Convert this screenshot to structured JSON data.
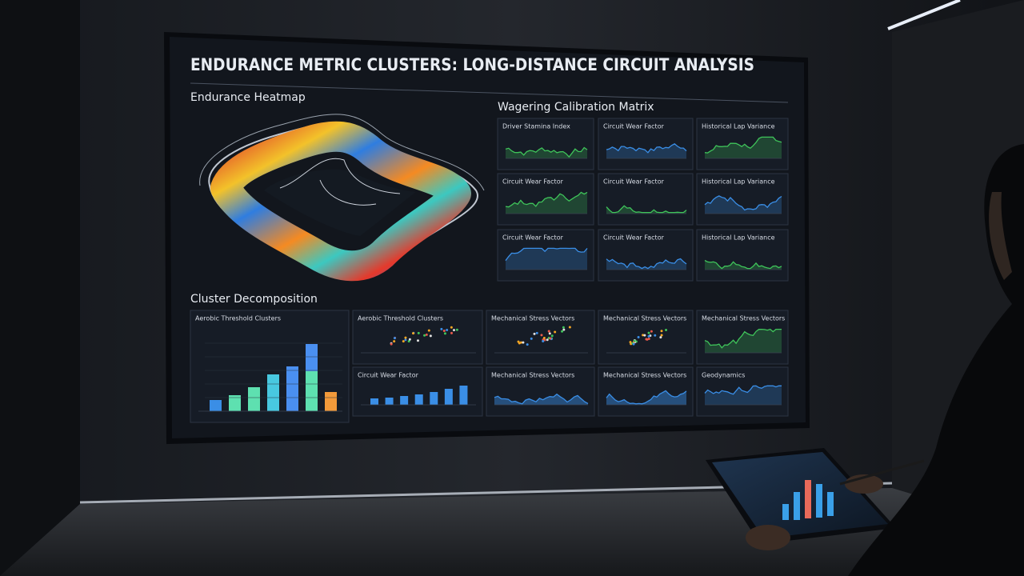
{
  "header": {
    "title": "ENDURANCE METRIC CLUSTERS: LONG-DISTANCE CIRCUIT ANALYSIS"
  },
  "heatmap": {
    "title": "Endurance Heatmap"
  },
  "matrix": {
    "title": "Wagering Calibration Matrix",
    "panels": [
      {
        "title": "Driver Stamina Index"
      },
      {
        "title": "Circuit Wear Factor"
      },
      {
        "title": "Historical Lap Variance"
      },
      {
        "title": "Circuit Wear Factor"
      },
      {
        "title": "Circuit Wear Factor"
      },
      {
        "title": "Historical Lap Variance"
      },
      {
        "title": "Circuit Wear Factor"
      },
      {
        "title": "Circuit Wear Factor"
      },
      {
        "title": "Historical Lap Variance"
      }
    ]
  },
  "clusters": {
    "title": "Cluster Decomposition",
    "panels": [
      {
        "title": "Aerobic Threshold Clusters"
      },
      {
        "title": "Aerobic Threshold Clusters"
      },
      {
        "title": "Mechanical Stress Vectors"
      },
      {
        "title": "Mechanical Stress Vectors"
      },
      {
        "title": "Mechanical Stress Vectors"
      },
      {
        "title": "Circuit Wear Factor"
      },
      {
        "title": "Mechanical Stress Vectors"
      },
      {
        "title": "Mechanical Stress Vectors"
      },
      {
        "title": "Geodynamics"
      }
    ]
  }
}
